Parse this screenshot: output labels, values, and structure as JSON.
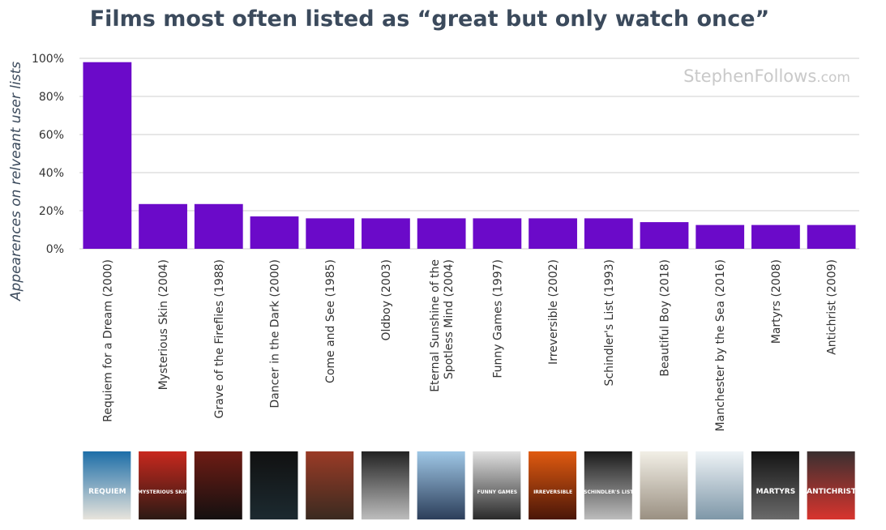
{
  "watermark": {
    "name": "StephenFollows",
    "suffix": ".com"
  },
  "posters": [
    {
      "title": "REQUIEM",
      "colors": [
        "#1d6ea8",
        "#e8e4dc"
      ]
    },
    {
      "title": "MYSTERIOUS SKIN",
      "colors": [
        "#c8281e",
        "#2b1a14"
      ]
    },
    {
      "title": "",
      "colors": [
        "#6e1c14",
        "#141010"
      ]
    },
    {
      "title": "",
      "colors": [
        "#111111",
        "#1c2a30"
      ]
    },
    {
      "title": "",
      "colors": [
        "#9a3b26",
        "#3a2a20"
      ]
    },
    {
      "title": "",
      "colors": [
        "#222222",
        "#bdbdbd"
      ]
    },
    {
      "title": "",
      "colors": [
        "#9fc7e6",
        "#2c3e5a"
      ]
    },
    {
      "title": "FUNNY GAMES",
      "colors": [
        "#e0e0e0",
        "#2a2a2a"
      ]
    },
    {
      "title": "IRREVERSIBLE",
      "colors": [
        "#e05a10",
        "#4a1608"
      ]
    },
    {
      "title": "SCHINDLER'S LIST",
      "colors": [
        "#1a1a1a",
        "#bdbdbd"
      ]
    },
    {
      "title": "",
      "colors": [
        "#f2efe6",
        "#9a9082"
      ]
    },
    {
      "title": "",
      "colors": [
        "#eef3f6",
        "#7e97a8"
      ]
    },
    {
      "title": "MARTYRS",
      "colors": [
        "#141414",
        "#6a6a6a"
      ]
    },
    {
      "title": "ANTICHRIST",
      "colors": [
        "#3a3030",
        "#d8342e"
      ]
    }
  ],
  "chart_data": {
    "type": "bar",
    "title": "Films most often listed as “great but only watch once”",
    "xlabel": "",
    "ylabel": "Appearences on relveant user lists",
    "ylim": [
      0,
      100
    ],
    "yticks": [
      0,
      20,
      40,
      60,
      80,
      100
    ],
    "ytick_labels": [
      "0%",
      "20%",
      "40%",
      "60%",
      "80%",
      "100%"
    ],
    "grid": true,
    "bar_color": "#6b0ac9",
    "categories": [
      "Requiem for a Dream (2000)",
      "Mysterious Skin (2004)",
      "Grave of the Fireflies (1988)",
      "Dancer in the Dark (2000)",
      "Come and See (1985)",
      "Oldboy (2003)",
      "Eternal Sunshine of the Spotless Mind (2004)",
      "Funny Games (1997)",
      "Irreversible (2002)",
      "Schindler's List (1993)",
      "Beautiful Boy (2018)",
      "Manchester by the Sea (2016)",
      "Martyrs (2008)",
      "Antichrist (2009)"
    ],
    "category_lines": [
      [
        "Requiem for a Dream (2000)"
      ],
      [
        "Mysterious Skin (2004)"
      ],
      [
        "Grave of the Fireflies (1988)"
      ],
      [
        "Dancer in the Dark (2000)"
      ],
      [
        "Come and See (1985)"
      ],
      [
        "Oldboy (2003)"
      ],
      [
        "Eternal Sunshine of the",
        "Spotless Mind (2004)"
      ],
      [
        "Funny Games (1997)"
      ],
      [
        "Irreversible (2002)"
      ],
      [
        "Schindler's List (1993)"
      ],
      [
        "Beautiful Boy (2018)"
      ],
      [
        "Manchester by the Sea (2016)"
      ],
      [
        "Martyrs (2008)"
      ],
      [
        "Antichrist (2009)"
      ]
    ],
    "values": [
      98,
      23.5,
      23.5,
      17,
      16,
      16,
      16,
      16,
      16,
      16,
      14,
      12.5,
      12.5,
      12.5
    ]
  }
}
